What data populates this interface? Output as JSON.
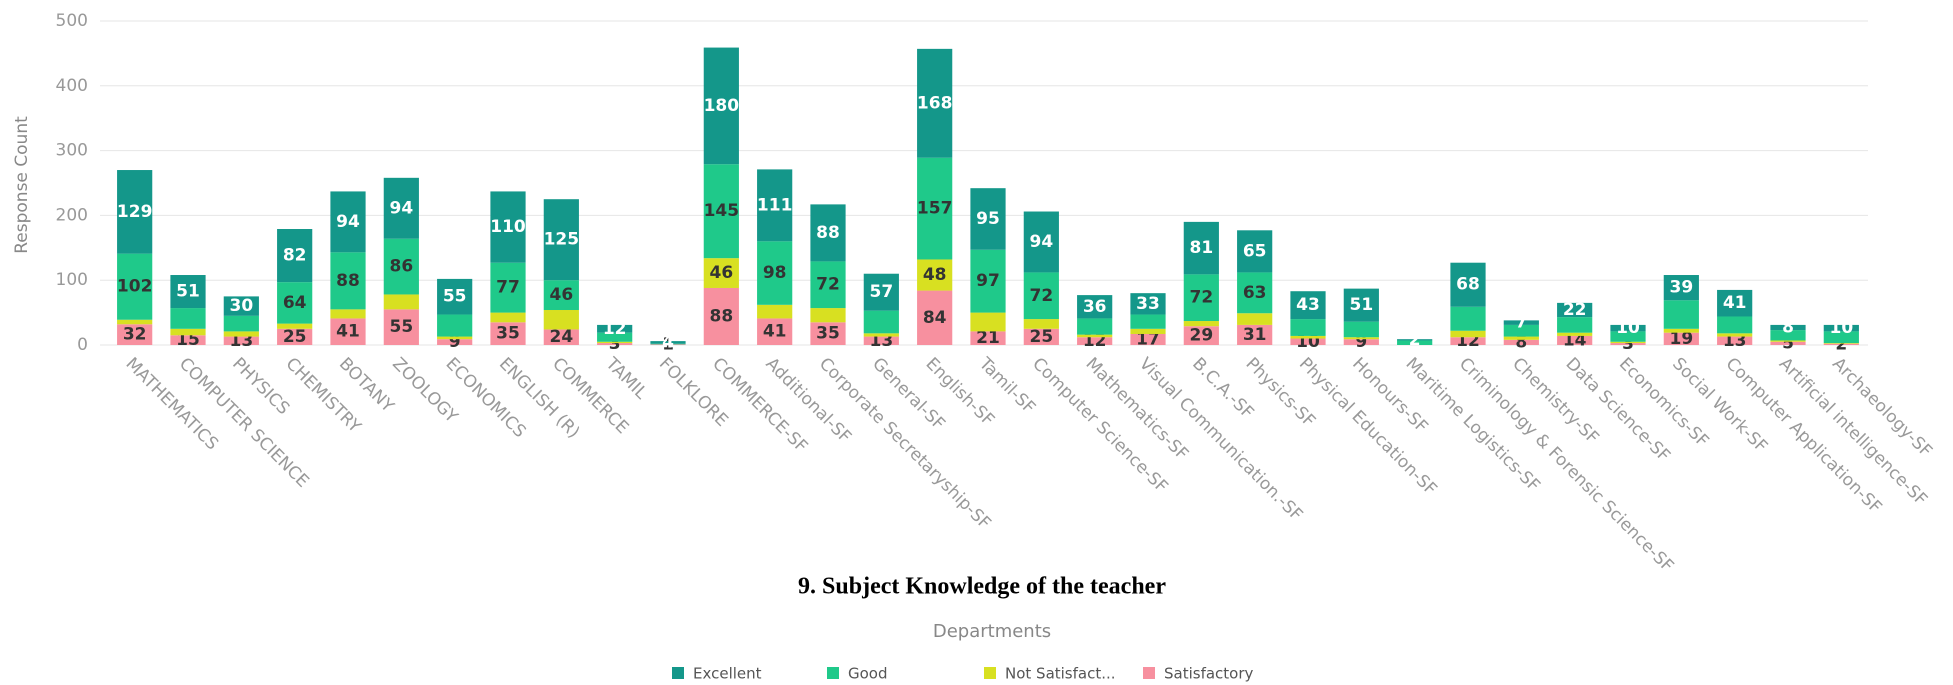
{
  "chart_data": {
    "type": "stacked_bar",
    "title": "9. Subject Knowledge of the teacher",
    "x_label": "Departments",
    "y_label": "Response Count",
    "categories": [
      "MATHEMATICS",
      "COMPUTER SCIENCE",
      "PHYSICS",
      "CHEMISTRY",
      "BOTANY",
      "ZOOLOGY",
      "ECONOMICS",
      "ENGLISH (R)",
      "COMMERCE",
      "TAMIL",
      "FOLKLORE",
      "COMMERCE-SF",
      "Additional-SF",
      "Corporate Secretaryship-SF",
      "General-SF",
      "English-SF",
      "Tamil-SF",
      "Computer Science-SF",
      "Mathematics-SF",
      "Visual Communication.-SF",
      "B.C.A.-SF",
      "Physics-SF",
      "Physical Education-SF",
      "Honours-SF",
      "Maritime Logistics-SF",
      "Criminology & Forensic Science-SF",
      "Chemistry-SF",
      "Data Science-SF",
      "Economics-SF",
      "Social Work-SF",
      "Computer Application-SF",
      "Artificial intelligence-SF",
      "Archaeology-SF"
    ],
    "series": [
      {
        "name": "Satisfactory",
        "color": "#f7909f",
        "values": [
          32,
          15,
          13,
          25,
          41,
          55,
          9,
          35,
          24,
          3,
          1,
          88,
          41,
          35,
          13,
          84,
          21,
          25,
          12,
          17,
          29,
          31,
          10,
          9,
          0,
          12,
          8,
          14,
          3,
          19,
          13,
          5,
          2
        ]
      },
      {
        "name": "Not Satisfact...",
        "color": "#d8e021",
        "values": [
          7,
          10,
          8,
          8,
          14,
          23,
          4,
          15,
          30,
          2,
          0,
          46,
          21,
          22,
          5,
          48,
          29,
          15,
          4,
          8,
          8,
          18,
          4,
          3,
          0,
          10,
          5,
          5,
          2,
          6,
          5,
          2,
          1
        ]
      },
      {
        "name": "Good",
        "color": "#1fc98a",
        "values": [
          102,
          32,
          24,
          64,
          88,
          86,
          34,
          77,
          46,
          14,
          1,
          145,
          98,
          72,
          35,
          157,
          97,
          72,
          25,
          22,
          72,
          63,
          26,
          24,
          7,
          37,
          18,
          24,
          16,
          44,
          26,
          16,
          18
        ]
      },
      {
        "name": "Excellent",
        "color": "#14978a",
        "values": [
          129,
          51,
          30,
          82,
          94,
          94,
          55,
          110,
          125,
          12,
          4,
          180,
          111,
          88,
          57,
          168,
          95,
          94,
          36,
          33,
          81,
          65,
          43,
          51,
          2,
          68,
          7,
          22,
          10,
          39,
          41,
          8,
          10
        ]
      }
    ],
    "ylim": [
      0,
      500
    ],
    "yticks": [
      0,
      100,
      200,
      300,
      400,
      500
    ],
    "grid": true
  }
}
